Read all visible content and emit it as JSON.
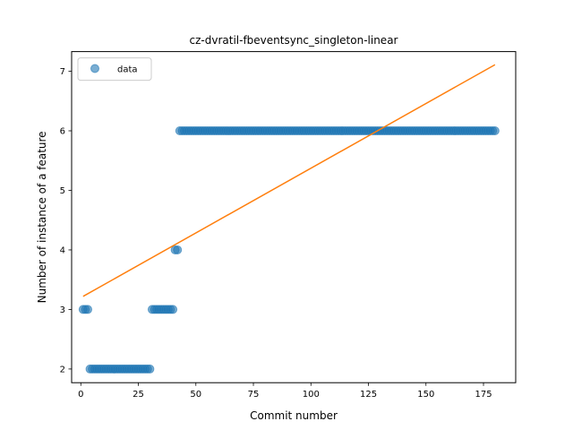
{
  "chart_data": {
    "type": "scatter",
    "title": "cz-dvratil-fbeventsync_singleton-linear",
    "xlabel": "Commit number",
    "ylabel": "Number of instance of a feature",
    "xlim": [
      -4,
      189
    ],
    "ylim": [
      1.77,
      7.33
    ],
    "xticks": [
      0,
      25,
      50,
      75,
      100,
      125,
      150,
      175
    ],
    "yticks": [
      2,
      3,
      4,
      5,
      6,
      7
    ],
    "grid": false,
    "legend": {
      "placement": "top-left",
      "entries": [
        "data"
      ]
    },
    "colors": {
      "data": "#1f77b4",
      "fit": "#ff7f0e"
    },
    "series": [
      {
        "name": "data",
        "kind": "scatter",
        "segments": [
          {
            "x_from": 1,
            "x_to": 3,
            "y": 3
          },
          {
            "x_from": 4,
            "x_to": 30,
            "y": 2
          },
          {
            "x_from": 31,
            "x_to": 40,
            "y": 3
          },
          {
            "x_from": 41,
            "x_to": 42,
            "y": 4
          },
          {
            "x_from": 43,
            "x_to": 180,
            "y": 6
          }
        ]
      },
      {
        "kind": "line",
        "x": [
          1,
          180
        ],
        "y": [
          3.22,
          7.11
        ]
      }
    ]
  }
}
